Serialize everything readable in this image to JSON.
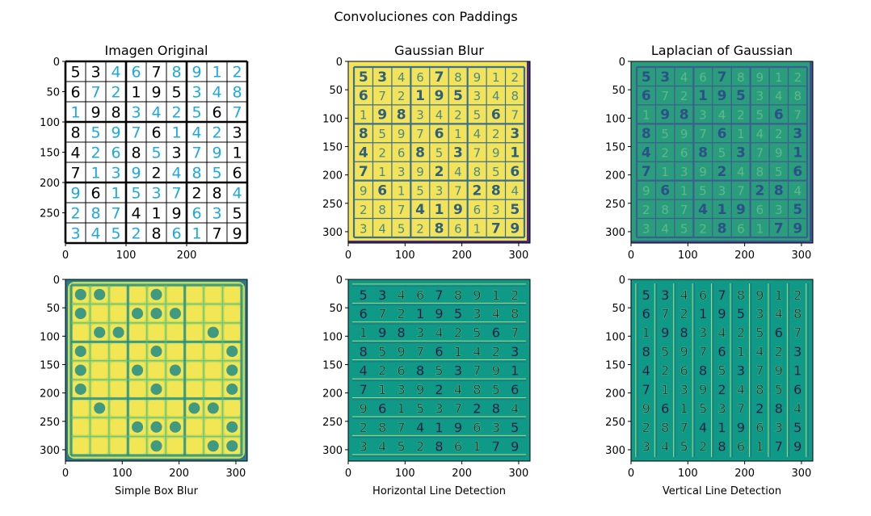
{
  "figure": {
    "suptitle": "Convoluciones con Paddings"
  },
  "chart_data": [
    {
      "type": "heatmap",
      "id": "original",
      "title": "Imagen Original",
      "xlabel": "",
      "xticks": [
        "0",
        "100",
        "200"
      ],
      "yticks": [
        "0",
        "50",
        "100",
        "150",
        "200",
        "250"
      ],
      "extent": [
        0,
        300
      ],
      "colormap": "gray",
      "grid_digits": [
        [
          "5",
          "3",
          "4",
          "6",
          "7",
          "8",
          "9",
          "1",
          "2"
        ],
        [
          "6",
          "7",
          "2",
          "1",
          "9",
          "5",
          "3",
          "4",
          "8"
        ],
        [
          "1",
          "9",
          "8",
          "3",
          "4",
          "2",
          "5",
          "6",
          "7"
        ],
        [
          "8",
          "5",
          "9",
          "7",
          "6",
          "1",
          "4",
          "2",
          "3"
        ],
        [
          "4",
          "2",
          "6",
          "8",
          "5",
          "3",
          "7",
          "9",
          "1"
        ],
        [
          "7",
          "1",
          "3",
          "9",
          "2",
          "4",
          "8",
          "5",
          "6"
        ],
        [
          "9",
          "6",
          "1",
          "5",
          "3",
          "7",
          "2",
          "8",
          "4"
        ],
        [
          "2",
          "8",
          "7",
          "4",
          "1",
          "9",
          "6",
          "3",
          "5"
        ],
        [
          "3",
          "4",
          "5",
          "2",
          "8",
          "6",
          "1",
          "7",
          "9"
        ]
      ],
      "given_mask": [
        [
          1,
          1,
          0,
          0,
          1,
          0,
          0,
          0,
          0
        ],
        [
          1,
          0,
          0,
          1,
          1,
          1,
          0,
          0,
          0
        ],
        [
          0,
          1,
          1,
          0,
          0,
          0,
          0,
          1,
          0
        ],
        [
          1,
          0,
          0,
          0,
          1,
          0,
          0,
          0,
          1
        ],
        [
          1,
          0,
          0,
          1,
          0,
          1,
          0,
          0,
          1
        ],
        [
          1,
          0,
          0,
          0,
          1,
          0,
          0,
          0,
          1
        ],
        [
          0,
          1,
          0,
          0,
          0,
          0,
          1,
          1,
          0
        ],
        [
          0,
          0,
          0,
          1,
          1,
          1,
          0,
          0,
          1
        ],
        [
          0,
          0,
          0,
          0,
          1,
          0,
          0,
          1,
          1
        ]
      ],
      "colors": {
        "given": "#000000",
        "filled": "#1ea7e0",
        "grid": "#000000",
        "background": "#ffffff"
      }
    },
    {
      "type": "heatmap",
      "id": "gaussian",
      "title": "Gaussian Blur",
      "xlabel": "",
      "xticks": [
        "0",
        "100",
        "200",
        "300"
      ],
      "yticks": [
        "0",
        "50",
        "100",
        "150",
        "200",
        "250",
        "300"
      ],
      "extent": [
        0,
        320
      ],
      "colormap": "viridis",
      "colors": {
        "background": "#f2e35a",
        "lines": "#3b6f8c",
        "given": "#2d5f7e",
        "filled": "#4a8a8a",
        "edge": "#482878"
      }
    },
    {
      "type": "heatmap",
      "id": "log",
      "title": "Laplacian of Gaussian",
      "xlabel": "",
      "xticks": [
        "0",
        "100",
        "200",
        "300"
      ],
      "yticks": [
        "0",
        "50",
        "100",
        "150",
        "200",
        "250",
        "300"
      ],
      "extent": [
        0,
        320
      ],
      "colormap": "viridis",
      "colors": {
        "background": "#2a9d7c",
        "lines": "#3d5f8f",
        "given": "#2f4f8c",
        "filled": "#5fb88a",
        "edge": "#3b528b"
      }
    },
    {
      "type": "heatmap",
      "id": "box",
      "title": "",
      "xlabel": "Simple Box Blur",
      "xticks": [
        "0",
        "100",
        "200",
        "300"
      ],
      "yticks": [
        "0",
        "50",
        "100",
        "150",
        "200",
        "250",
        "300"
      ],
      "extent": [
        0,
        320
      ],
      "colormap": "viridis",
      "colors": {
        "background": "#c9dc5a",
        "cell": "#f3e654",
        "lines": "#5fc07a",
        "blob": "#1f8c8a",
        "edge": "#2a7a8a"
      }
    },
    {
      "type": "heatmap",
      "id": "horizontal",
      "title": "",
      "xlabel": "Horizontal Line Detection",
      "xticks": [
        "0",
        "100",
        "200",
        "300"
      ],
      "yticks": [
        "0",
        "50",
        "100",
        "150",
        "200",
        "250",
        "300"
      ],
      "extent": [
        0,
        320
      ],
      "colormap": "viridis",
      "colors": {
        "background": "#0e9a86",
        "light": "#bfe07a",
        "dark": "#2a6b8a"
      }
    },
    {
      "type": "heatmap",
      "id": "vertical",
      "title": "",
      "xlabel": "Vertical Line Detection",
      "xticks": [
        "0",
        "100",
        "200",
        "300"
      ],
      "yticks": [
        "0",
        "50",
        "100",
        "150",
        "200",
        "250",
        "300"
      ],
      "extent": [
        0,
        320
      ],
      "colormap": "viridis",
      "colors": {
        "background": "#0e9a86",
        "light": "#bfe07a",
        "dark": "#2a6b8a"
      }
    }
  ]
}
